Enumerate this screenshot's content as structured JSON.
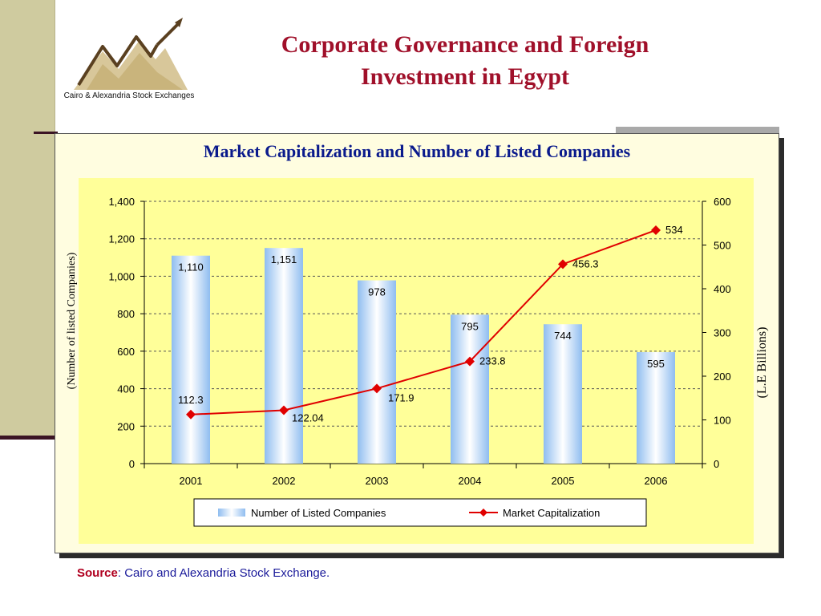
{
  "slide": {
    "title_line1": "Corporate Governance and Foreign",
    "title_line2": "Investment in Egypt",
    "logo_text": "Cairo & Alexandria Stock Exchanges",
    "source_label": "Source",
    "source_text": ": Cairo and Alexandria Stock Exchange."
  },
  "chart_data": {
    "type": "bar",
    "title": "Market Capitalization and Number of Listed Companies",
    "categories": [
      "2001",
      "2002",
      "2003",
      "2004",
      "2005",
      "2006"
    ],
    "series": [
      {
        "name": "Number of Listed Companies",
        "type": "bar",
        "axis": "left",
        "values": [
          1110,
          1151,
          978,
          795,
          744,
          595
        ],
        "labels": [
          "1,110",
          "1,151",
          "978",
          "795",
          "744",
          "595"
        ]
      },
      {
        "name": "Market Capitalization",
        "type": "line",
        "axis": "right",
        "values": [
          112.3,
          122.04,
          171.9,
          233.8,
          456.3,
          534
        ],
        "labels": [
          "112.3",
          "122.04",
          "171.9",
          "233.8",
          "456.3",
          "534"
        ]
      }
    ],
    "ylabel": "(Number of listed Companies)",
    "y2label": "(L.E Billions)",
    "ylim": [
      0,
      1400
    ],
    "y2lim": [
      0,
      600
    ],
    "yticks": [
      "0",
      "200",
      "400",
      "600",
      "800",
      "1,000",
      "1,200",
      "1,400"
    ],
    "y2ticks": [
      "0",
      "100",
      "200",
      "300",
      "400",
      "500",
      "600"
    ],
    "grid": true,
    "legend_position": "bottom",
    "colors": {
      "bar": "#aacdf3",
      "line": "#e00000",
      "plot_bg": "#ffff99"
    }
  }
}
